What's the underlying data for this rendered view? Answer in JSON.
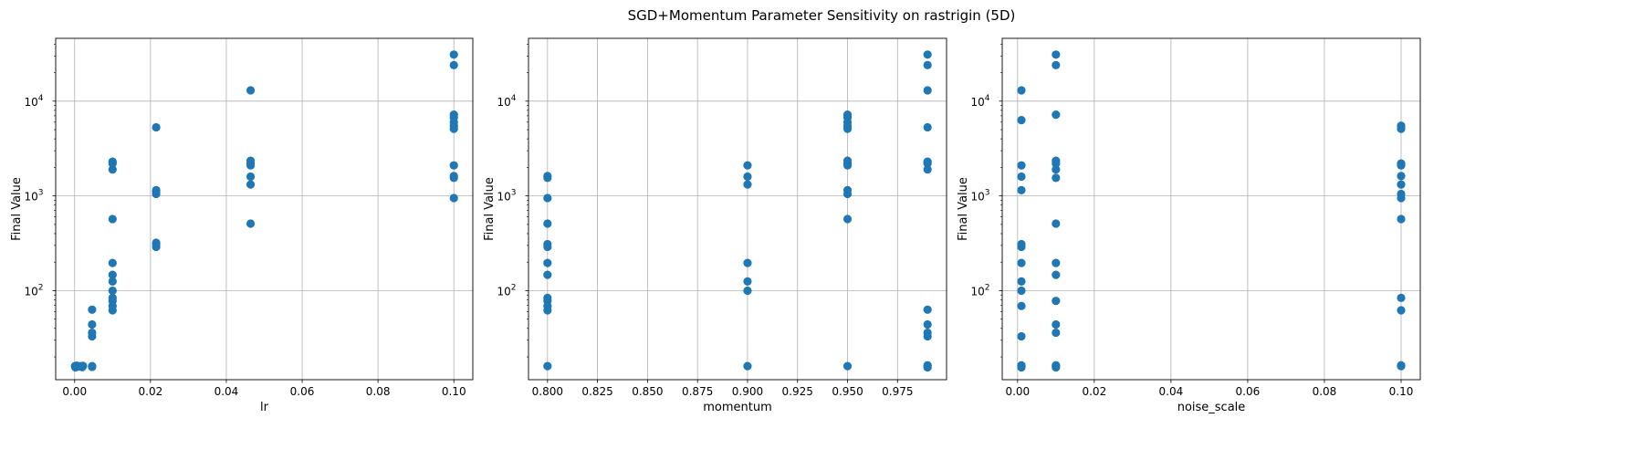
{
  "figure": {
    "title": "SGD+Momentum Parameter Sensitivity on rastrigin (5D)"
  },
  "chart_data": [
    {
      "type": "scatter",
      "xlabel": "lr",
      "ylabel": "Final Value",
      "xlim": [
        -0.005,
        0.105
      ],
      "ylim": [
        11.5,
        46000
      ],
      "yscale": "log",
      "grid": true,
      "color": "#1f77b4",
      "xticks": [
        {
          "v": 0.0,
          "label": "0.00"
        },
        {
          "v": 0.02,
          "label": "0.02"
        },
        {
          "v": 0.04,
          "label": "0.04"
        },
        {
          "v": 0.06,
          "label": "0.06"
        },
        {
          "v": 0.08,
          "label": "0.08"
        },
        {
          "v": 0.1,
          "label": "0.10"
        }
      ],
      "yticks": [
        {
          "v": 100,
          "base": "10",
          "exp": "2"
        },
        {
          "v": 1000,
          "base": "10",
          "exp": "3"
        },
        {
          "v": 10000,
          "base": "10",
          "exp": "4"
        }
      ],
      "points": [
        {
          "x": 0.0001,
          "y": 16
        },
        {
          "x": 0.0002,
          "y": 15.5
        },
        {
          "x": 0.0005,
          "y": 16.2
        },
        {
          "x": 0.001,
          "y": 15.8
        },
        {
          "x": 0.0015,
          "y": 16
        },
        {
          "x": 0.002,
          "y": 15.6
        },
        {
          "x": 0.0022,
          "y": 16.1
        },
        {
          "x": 0.0046,
          "y": 16
        },
        {
          "x": 0.0046,
          "y": 15.7
        },
        {
          "x": 0.0046,
          "y": 33
        },
        {
          "x": 0.0046,
          "y": 36
        },
        {
          "x": 0.0046,
          "y": 44
        },
        {
          "x": 0.0046,
          "y": 63
        },
        {
          "x": 0.01,
          "y": 62
        },
        {
          "x": 0.01,
          "y": 69
        },
        {
          "x": 0.01,
          "y": 78
        },
        {
          "x": 0.01,
          "y": 84
        },
        {
          "x": 0.01,
          "y": 100
        },
        {
          "x": 0.01,
          "y": 125
        },
        {
          "x": 0.01,
          "y": 147
        },
        {
          "x": 0.01,
          "y": 196
        },
        {
          "x": 0.01,
          "y": 570
        },
        {
          "x": 0.01,
          "y": 1900
        },
        {
          "x": 0.01,
          "y": 2200
        },
        {
          "x": 0.01,
          "y": 2300
        },
        {
          "x": 0.0215,
          "y": 290
        },
        {
          "x": 0.0215,
          "y": 310
        },
        {
          "x": 0.0215,
          "y": 320
        },
        {
          "x": 0.0215,
          "y": 1050
        },
        {
          "x": 0.0215,
          "y": 1100
        },
        {
          "x": 0.0215,
          "y": 1150
        },
        {
          "x": 0.0215,
          "y": 5300
        },
        {
          "x": 0.0464,
          "y": 510
        },
        {
          "x": 0.0464,
          "y": 1320
        },
        {
          "x": 0.0464,
          "y": 1600
        },
        {
          "x": 0.0464,
          "y": 2100
        },
        {
          "x": 0.0464,
          "y": 2200
        },
        {
          "x": 0.0464,
          "y": 2350
        },
        {
          "x": 0.0464,
          "y": 13000
        },
        {
          "x": 0.1,
          "y": 950
        },
        {
          "x": 0.1,
          "y": 1550
        },
        {
          "x": 0.1,
          "y": 1620
        },
        {
          "x": 0.1,
          "y": 2100
        },
        {
          "x": 0.1,
          "y": 5100
        },
        {
          "x": 0.1,
          "y": 5500
        },
        {
          "x": 0.1,
          "y": 6000
        },
        {
          "x": 0.1,
          "y": 6700
        },
        {
          "x": 0.1,
          "y": 7200
        },
        {
          "x": 0.1,
          "y": 24000
        },
        {
          "x": 0.1,
          "y": 31000
        }
      ]
    },
    {
      "type": "scatter",
      "xlabel": "momentum",
      "ylabel": "Final Value",
      "xlim": [
        0.7905,
        0.9995
      ],
      "ylim": [
        11.5,
        46000
      ],
      "yscale": "log",
      "grid": true,
      "color": "#1f77b4",
      "xticks": [
        {
          "v": 0.8,
          "label": "0.800"
        },
        {
          "v": 0.825,
          "label": "0.825"
        },
        {
          "v": 0.85,
          "label": "0.850"
        },
        {
          "v": 0.875,
          "label": "0.875"
        },
        {
          "v": 0.9,
          "label": "0.900"
        },
        {
          "v": 0.925,
          "label": "0.925"
        },
        {
          "v": 0.95,
          "label": "0.950"
        },
        {
          "v": 0.975,
          "label": "0.975"
        }
      ],
      "yticks": [
        {
          "v": 100,
          "base": "10",
          "exp": "2"
        },
        {
          "v": 1000,
          "base": "10",
          "exp": "3"
        },
        {
          "v": 10000,
          "base": "10",
          "exp": "4"
        }
      ],
      "points": [
        {
          "x": 0.8,
          "y": 16
        },
        {
          "x": 0.8,
          "y": 62
        },
        {
          "x": 0.8,
          "y": 69
        },
        {
          "x": 0.8,
          "y": 78
        },
        {
          "x": 0.8,
          "y": 84
        },
        {
          "x": 0.8,
          "y": 147
        },
        {
          "x": 0.8,
          "y": 196
        },
        {
          "x": 0.8,
          "y": 290
        },
        {
          "x": 0.8,
          "y": 310
        },
        {
          "x": 0.8,
          "y": 510
        },
        {
          "x": 0.8,
          "y": 950
        },
        {
          "x": 0.8,
          "y": 1550
        },
        {
          "x": 0.8,
          "y": 1620
        },
        {
          "x": 0.9,
          "y": 16
        },
        {
          "x": 0.9,
          "y": 100
        },
        {
          "x": 0.9,
          "y": 125
        },
        {
          "x": 0.9,
          "y": 196
        },
        {
          "x": 0.9,
          "y": 1320
        },
        {
          "x": 0.9,
          "y": 1600
        },
        {
          "x": 0.9,
          "y": 2100
        },
        {
          "x": 0.95,
          "y": 16
        },
        {
          "x": 0.95,
          "y": 570
        },
        {
          "x": 0.95,
          "y": 1050
        },
        {
          "x": 0.95,
          "y": 1150
        },
        {
          "x": 0.95,
          "y": 2100
        },
        {
          "x": 0.95,
          "y": 2200
        },
        {
          "x": 0.95,
          "y": 2350
        },
        {
          "x": 0.95,
          "y": 5100
        },
        {
          "x": 0.95,
          "y": 5500
        },
        {
          "x": 0.95,
          "y": 6000
        },
        {
          "x": 0.95,
          "y": 6700
        },
        {
          "x": 0.95,
          "y": 7200
        },
        {
          "x": 0.99,
          "y": 15.5
        },
        {
          "x": 0.99,
          "y": 16
        },
        {
          "x": 0.99,
          "y": 16.3
        },
        {
          "x": 0.99,
          "y": 33
        },
        {
          "x": 0.99,
          "y": 36
        },
        {
          "x": 0.99,
          "y": 44
        },
        {
          "x": 0.99,
          "y": 63
        },
        {
          "x": 0.99,
          "y": 1900
        },
        {
          "x": 0.99,
          "y": 2200
        },
        {
          "x": 0.99,
          "y": 2300
        },
        {
          "x": 0.99,
          "y": 5300
        },
        {
          "x": 0.99,
          "y": 13000
        },
        {
          "x": 0.99,
          "y": 24000
        },
        {
          "x": 0.99,
          "y": 31000
        }
      ]
    },
    {
      "type": "scatter",
      "xlabel": "noise_scale",
      "ylabel": "Final Value",
      "xlim": [
        -0.004,
        0.105
      ],
      "ylim": [
        11.5,
        46000
      ],
      "yscale": "log",
      "grid": true,
      "color": "#1f77b4",
      "xticks": [
        {
          "v": 0.0,
          "label": "0.00"
        },
        {
          "v": 0.02,
          "label": "0.02"
        },
        {
          "v": 0.04,
          "label": "0.04"
        },
        {
          "v": 0.06,
          "label": "0.06"
        },
        {
          "v": 0.08,
          "label": "0.08"
        },
        {
          "v": 0.1,
          "label": "0.10"
        }
      ],
      "yticks": [
        {
          "v": 100,
          "base": "10",
          "exp": "2"
        },
        {
          "v": 1000,
          "base": "10",
          "exp": "3"
        },
        {
          "v": 10000,
          "base": "10",
          "exp": "4"
        }
      ],
      "points": [
        {
          "x": 0.001,
          "y": 15.5
        },
        {
          "x": 0.001,
          "y": 16
        },
        {
          "x": 0.001,
          "y": 16.3
        },
        {
          "x": 0.001,
          "y": 33
        },
        {
          "x": 0.001,
          "y": 69
        },
        {
          "x": 0.001,
          "y": 100
        },
        {
          "x": 0.001,
          "y": 125
        },
        {
          "x": 0.001,
          "y": 196
        },
        {
          "x": 0.001,
          "y": 290
        },
        {
          "x": 0.001,
          "y": 310
        },
        {
          "x": 0.001,
          "y": 1150
        },
        {
          "x": 0.001,
          "y": 1600
        },
        {
          "x": 0.001,
          "y": 2100
        },
        {
          "x": 0.001,
          "y": 6300
        },
        {
          "x": 0.001,
          "y": 13000
        },
        {
          "x": 0.01,
          "y": 15.5
        },
        {
          "x": 0.01,
          "y": 16
        },
        {
          "x": 0.01,
          "y": 16.3
        },
        {
          "x": 0.01,
          "y": 36
        },
        {
          "x": 0.01,
          "y": 44
        },
        {
          "x": 0.01,
          "y": 78
        },
        {
          "x": 0.01,
          "y": 147
        },
        {
          "x": 0.01,
          "y": 196
        },
        {
          "x": 0.01,
          "y": 510
        },
        {
          "x": 0.01,
          "y": 1550
        },
        {
          "x": 0.01,
          "y": 1900
        },
        {
          "x": 0.01,
          "y": 2200
        },
        {
          "x": 0.01,
          "y": 2350
        },
        {
          "x": 0.01,
          "y": 7200
        },
        {
          "x": 0.01,
          "y": 24000
        },
        {
          "x": 0.01,
          "y": 31000
        },
        {
          "x": 0.1,
          "y": 16
        },
        {
          "x": 0.1,
          "y": 16.3
        },
        {
          "x": 0.1,
          "y": 62
        },
        {
          "x": 0.1,
          "y": 84
        },
        {
          "x": 0.1,
          "y": 570
        },
        {
          "x": 0.1,
          "y": 950
        },
        {
          "x": 0.1,
          "y": 1050
        },
        {
          "x": 0.1,
          "y": 1320
        },
        {
          "x": 0.1,
          "y": 1620
        },
        {
          "x": 0.1,
          "y": 2100
        },
        {
          "x": 0.1,
          "y": 2200
        },
        {
          "x": 0.1,
          "y": 5100
        },
        {
          "x": 0.1,
          "y": 5500
        }
      ]
    }
  ]
}
